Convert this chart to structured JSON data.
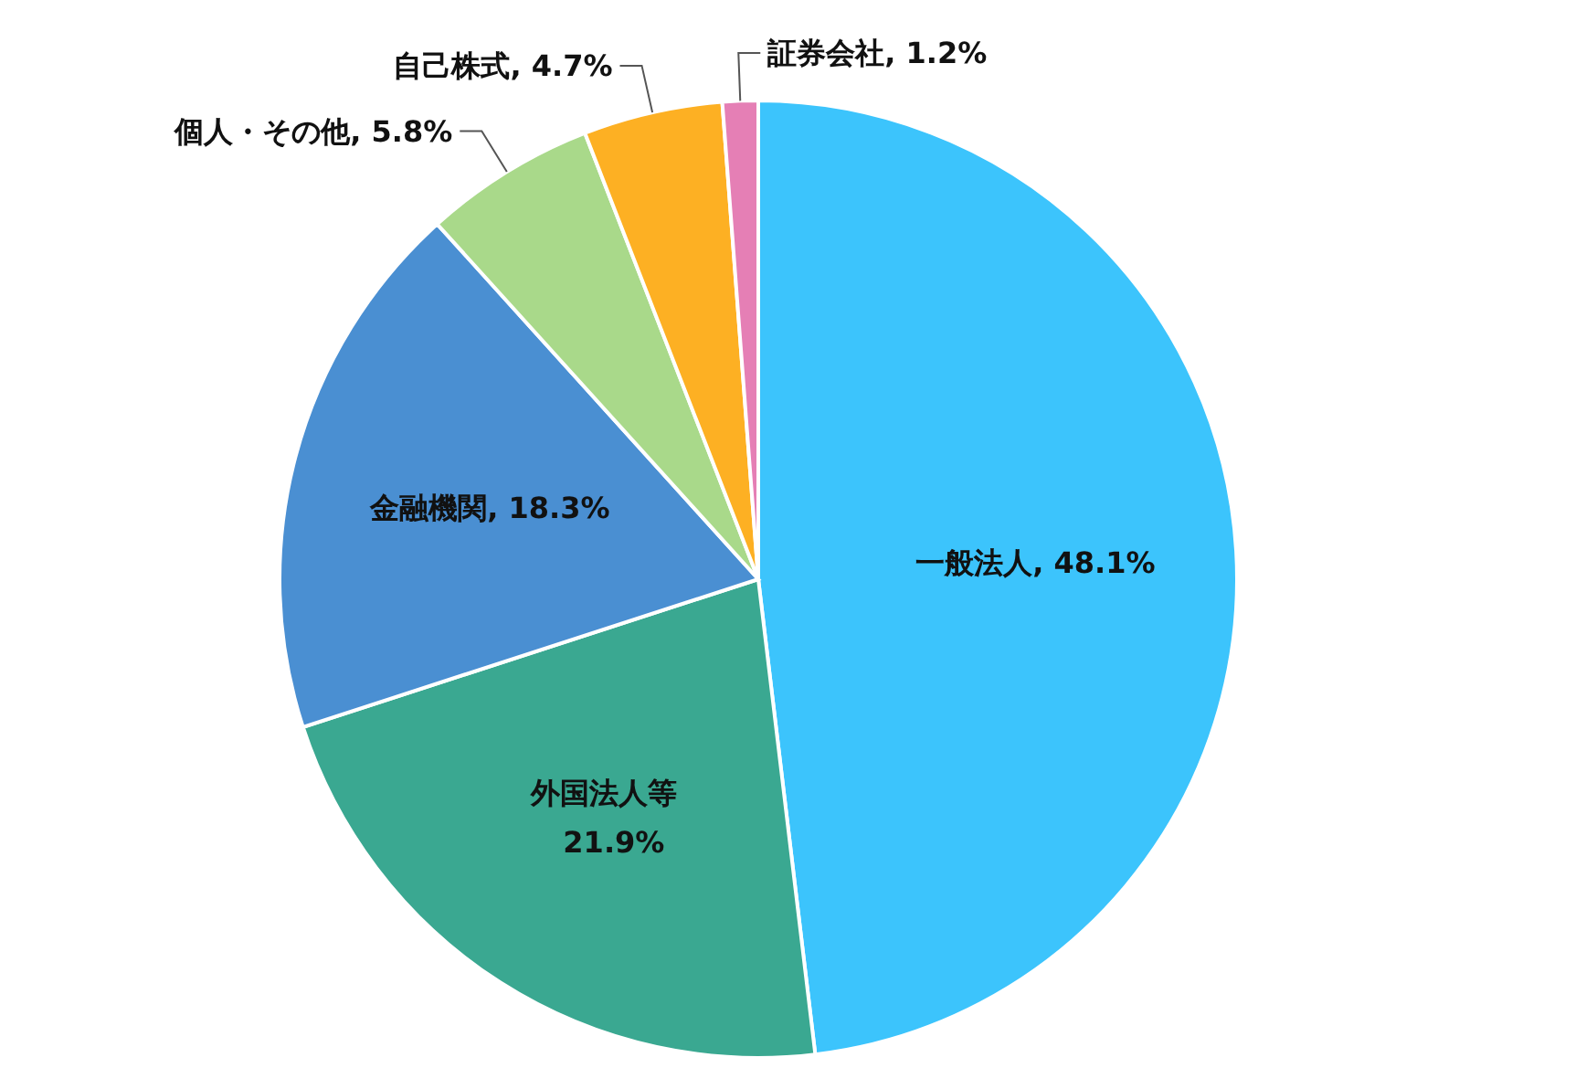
{
  "chart_data": {
    "type": "pie",
    "categories": [
      "一般法人",
      "外国法人等",
      "金融機関",
      "個人・その他",
      "自己株式",
      "証券会社"
    ],
    "values": [
      48.1,
      21.9,
      18.3,
      5.8,
      4.7,
      1.2
    ],
    "value_labels": [
      "48.1%",
      "21.9%",
      "18.3%",
      "5.8%",
      "4.7%",
      "1.2%"
    ],
    "colors": [
      "#3cc4fc",
      "#3aa891",
      "#4a8fd2",
      "#a9d98a",
      "#fdb023",
      "#e57fb5"
    ]
  }
}
